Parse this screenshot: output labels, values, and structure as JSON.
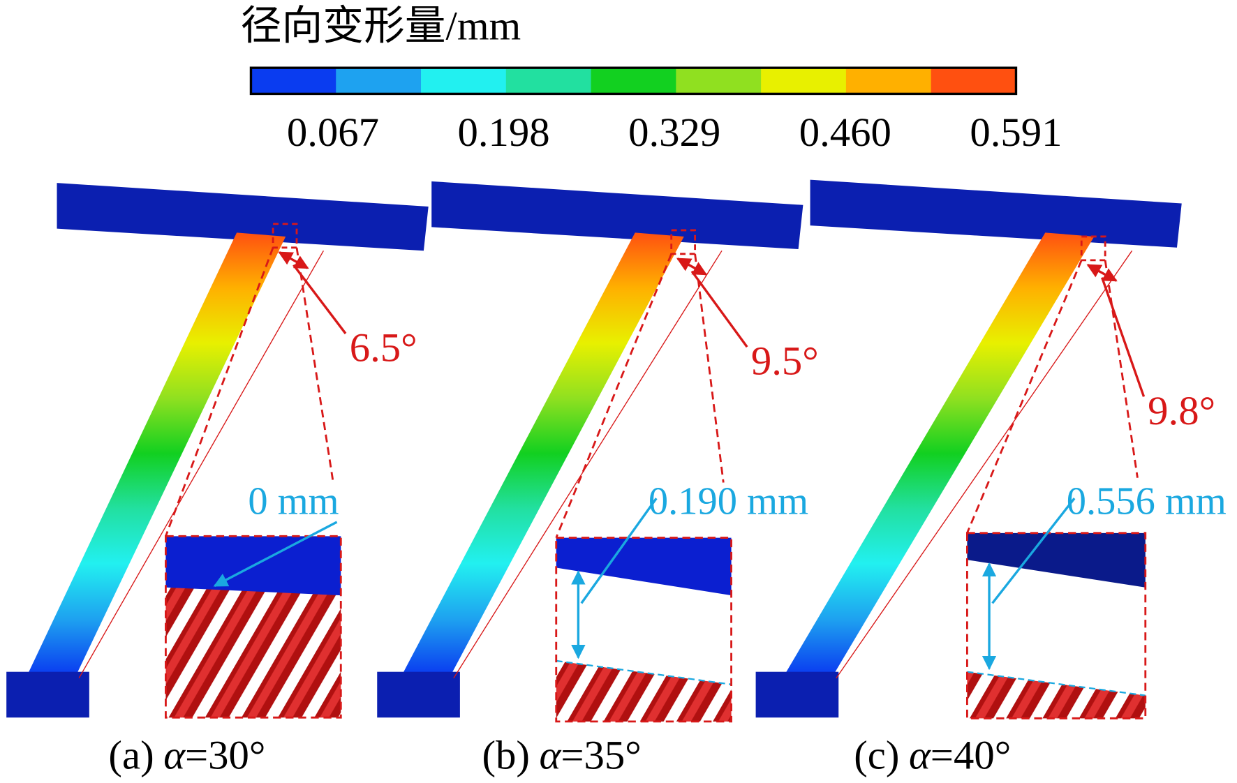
{
  "colorbar": {
    "title": "径向变形量/mm",
    "ticks": [
      "0.067",
      "0.198",
      "0.329",
      "0.460",
      "0.591"
    ],
    "colors": [
      "#0a3cf0",
      "#1ea2f0",
      "#22f0f0",
      "#22e0a0",
      "#12d020",
      "#90e020",
      "#e8f000",
      "#ffb000",
      "#ff5010"
    ]
  },
  "panels": [
    {
      "label": "(a)",
      "symbol": "α",
      "value": "=30°",
      "angle": "6.5°",
      "gap": "0 mm"
    },
    {
      "label": "(b)",
      "symbol": "α",
      "value": "=35°",
      "angle": "9.5°",
      "gap": "0.190 mm"
    },
    {
      "label": "(c)",
      "symbol": "α",
      "value": "=40°",
      "angle": "9.8°",
      "gap": "0.556 mm"
    }
  ]
}
